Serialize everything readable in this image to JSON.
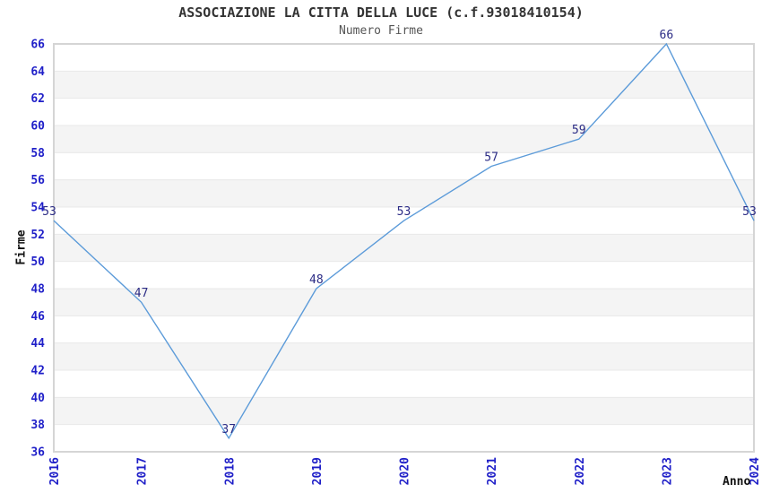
{
  "chart_data": {
    "type": "line",
    "title": "ASSOCIAZIONE LA CITTA DELLA LUCE (c.f.93018410154)",
    "subtitle": "Numero Firme",
    "xlabel": "Anno",
    "ylabel": "Firme",
    "categories": [
      "2016",
      "2017",
      "2018",
      "2019",
      "2020",
      "2021",
      "2022",
      "2023",
      "2024"
    ],
    "series": [
      {
        "name": "Numero Firme",
        "values": [
          53,
          47,
          37,
          48,
          53,
          57,
          59,
          66,
          53
        ]
      }
    ],
    "ylim": [
      36,
      66
    ],
    "ytick_step": 2,
    "grid": "horizontal gridlines with alternating shaded bands",
    "legend": "none",
    "colors": {
      "line": "#5C9BD9",
      "tick_label": "#1F1FC8",
      "data_label": "#2B2B85",
      "band": "#F4F4F4",
      "gridline": "#E8E8E8",
      "border": "#D5D5D5",
      "title": "#333333",
      "subtitle": "#555555",
      "axis_label": "#111111",
      "background": "#FFFFFF"
    }
  }
}
